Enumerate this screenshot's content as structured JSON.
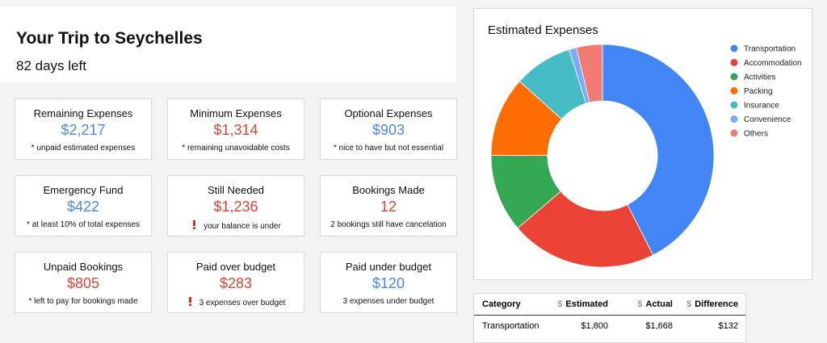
{
  "header": {
    "title": "Your Trip to Seychelles",
    "subtitle": "82 days left"
  },
  "cards": [
    {
      "title": "Remaining Expenses",
      "value": "$2,217",
      "note": "* unpaid estimated expenses",
      "color": "#4a86e8",
      "warning": false
    },
    {
      "title": "Minimum Expenses",
      "value": "$1,314",
      "note": "* remaining unavoidable costs",
      "color": "#db4437",
      "warning": false
    },
    {
      "title": "Optional Expenses",
      "value": "$903",
      "note": "* nice to have but not essential",
      "color": "#4a86e8",
      "warning": false
    },
    {
      "title": "Emergency Fund",
      "value": "$422",
      "note": "* at least 10% of total expenses",
      "color": "#4a86e8",
      "warning": false
    },
    {
      "title": "Still Needed",
      "value": "$1,236",
      "note": "your balance is under",
      "color": "#db4437",
      "warning": true
    },
    {
      "title": "Bookings Made",
      "value": "12",
      "note": "2 bookings still have cancelation",
      "color": "#db4437",
      "warning": false
    },
    {
      "title": "Unpaid Bookings",
      "value": "$805",
      "note": "* left to pay for bookings made",
      "color": "#db4437",
      "warning": false
    },
    {
      "title": "Paid over budget",
      "value": "$283",
      "note": "3 expenses over budget",
      "color": "#db4437",
      "warning": true
    },
    {
      "title": "Paid under budget",
      "value": "$120",
      "note": "3 expenses under budget",
      "color": "#4a86e8",
      "warning": false
    }
  ],
  "chart_data": {
    "type": "pie",
    "title": "Estimated Expenses",
    "categories": [
      "Transportation",
      "Accommodation",
      "Activities",
      "Packing",
      "Insurance",
      "Convenience",
      "Others"
    ],
    "values": [
      1800,
      900,
      480,
      490,
      360,
      45,
      160
    ],
    "colors": [
      "#4285f4",
      "#ea4335",
      "#34a853",
      "#ff6d01",
      "#46bdc6",
      "#7baaf7",
      "#f07b72"
    ],
    "legend": "right"
  },
  "table": {
    "header": [
      {
        "label": "Category"
      },
      {
        "unit": "$",
        "label": "Estimated"
      },
      {
        "unit": "$",
        "label": "Actual"
      },
      {
        "unit": "$",
        "label": "Difference"
      }
    ],
    "rows": [
      [
        "Transportation",
        "$1,800",
        "$1,668",
        "$132"
      ]
    ]
  }
}
